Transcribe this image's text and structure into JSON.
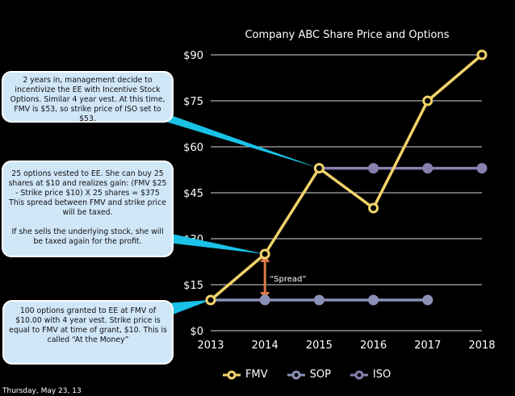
{
  "chart_data": {
    "type": "line",
    "title": "Company ABC Share Price and Options",
    "x": [
      "2013",
      "2014",
      "2015",
      "2016",
      "2017",
      "2018"
    ],
    "y_ticks": [
      "$0",
      "$15",
      "$30",
      "$45",
      "$60",
      "$75",
      "$90"
    ],
    "ylim": [
      0,
      90
    ],
    "grid": true,
    "legend_placement": "bottom",
    "series": [
      {
        "name": "FMV",
        "color": "#f2d36b",
        "values": [
          10,
          25,
          53,
          40,
          75,
          90
        ]
      },
      {
        "name": "SOP",
        "color": "#8b90b5",
        "values": [
          10,
          10,
          10,
          10,
          10,
          null
        ]
      },
      {
        "name": "ISO",
        "color": "#8b7fb0",
        "values": [
          null,
          null,
          53,
          53,
          53,
          53
        ]
      }
    ],
    "annotations": {
      "spread_label": "“Spread”",
      "spread_from": [
        2014,
        10
      ],
      "spread_to": [
        2014,
        25
      ],
      "arrow_color": "#d9784a"
    }
  },
  "callouts": {
    "iso": "2 years in, management decide to incentivize the EE with Incentive Stock Options. Similar 4 year vest. At this time, FMV is $53, so strike price of ISO set to $53.",
    "vested_part1": "25 options vested to EE. She can buy 25 shares at $10 and realizes gain: (FMV $25 - Strike price $10) X 25 shares = $375 This spread between FMV and strike price will be taxed.",
    "vested_part2": "If she sells the underlying stock, she will be taxed again for the profit.",
    "granted": "100 options granted to EE at FMV of $10.00 with 4 year vest. Strike price is equal to FMV at time of grant, $10. This is called “At the Money”"
  },
  "footer_date": "Thursday, May 23, 13",
  "colors": {
    "callout_bg": "#cfe7f7",
    "pointer": "#19c2e6",
    "background": "#000000"
  }
}
